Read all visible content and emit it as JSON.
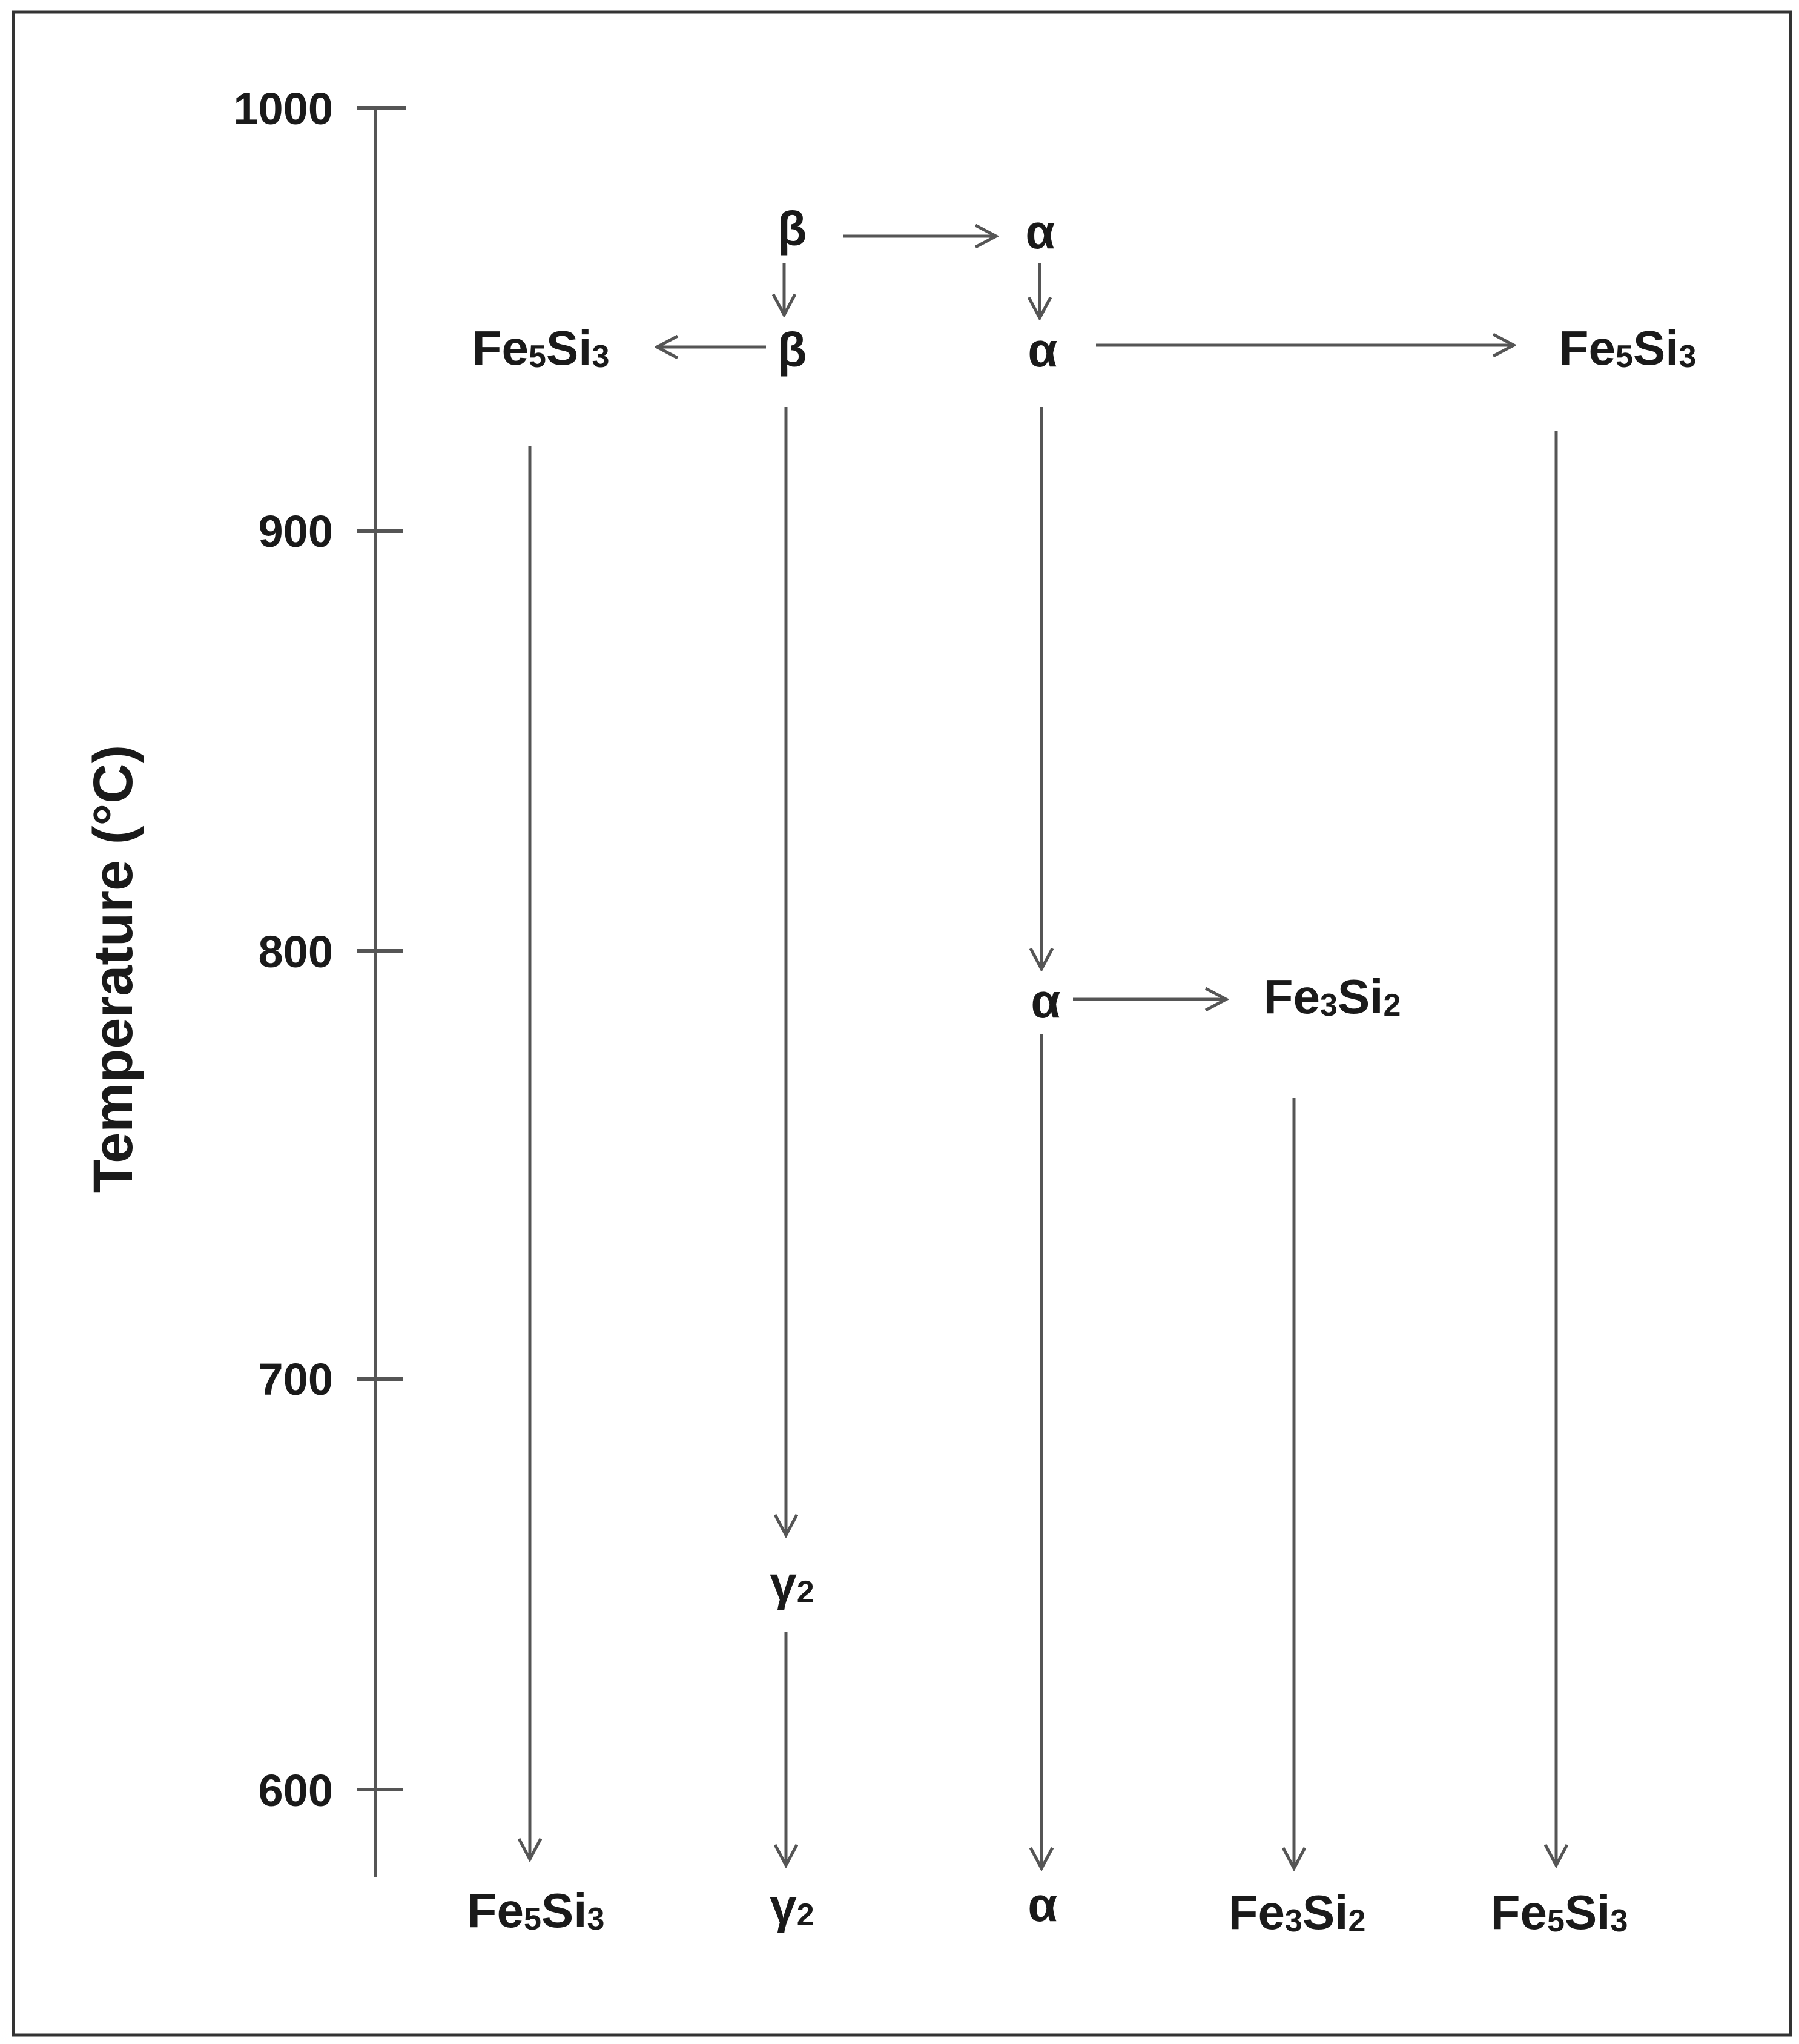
{
  "axis": {
    "title": "Temperature (°C)",
    "ticks": [
      "1000",
      "900",
      "800",
      "700",
      "600"
    ]
  },
  "phases": {
    "beta_top": {
      "main": "β",
      "sub": ""
    },
    "alpha_top": {
      "main": "α",
      "sub": ""
    },
    "fe5si3_left_upper": {
      "main": "Fe",
      "sub": "5",
      "main2": "Si",
      "sub2": "3"
    },
    "beta_mid": {
      "main": "β",
      "sub": ""
    },
    "alpha_mid": {
      "main": "α",
      "sub": ""
    },
    "fe5si3_right_upper": {
      "main": "Fe",
      "sub": "5",
      "main2": "Si",
      "sub2": "3"
    },
    "alpha_800": {
      "main": "α",
      "sub": ""
    },
    "fe3si2_upper": {
      "main": "Fe",
      "sub": "3",
      "main2": "Si",
      "sub2": "2"
    },
    "gamma2_mid": {
      "main": "γ",
      "sub": "2"
    },
    "fe5si3_left_bottom": {
      "main": "Fe",
      "sub": "5",
      "main2": "Si",
      "sub2": "3"
    },
    "gamma2_bottom": {
      "main": "γ",
      "sub": "2"
    },
    "alpha_bottom": {
      "main": "α",
      "sub": ""
    },
    "fe3si2_bottom": {
      "main": "Fe",
      "sub": "3",
      "main2": "Si",
      "sub2": "2"
    },
    "fe5si3_right_bottom": {
      "main": "Fe",
      "sub": "5",
      "main2": "Si",
      "sub2": "3"
    }
  },
  "colors": {
    "line": "#555555",
    "text": "#1a1a1a",
    "frame": "#333333"
  }
}
